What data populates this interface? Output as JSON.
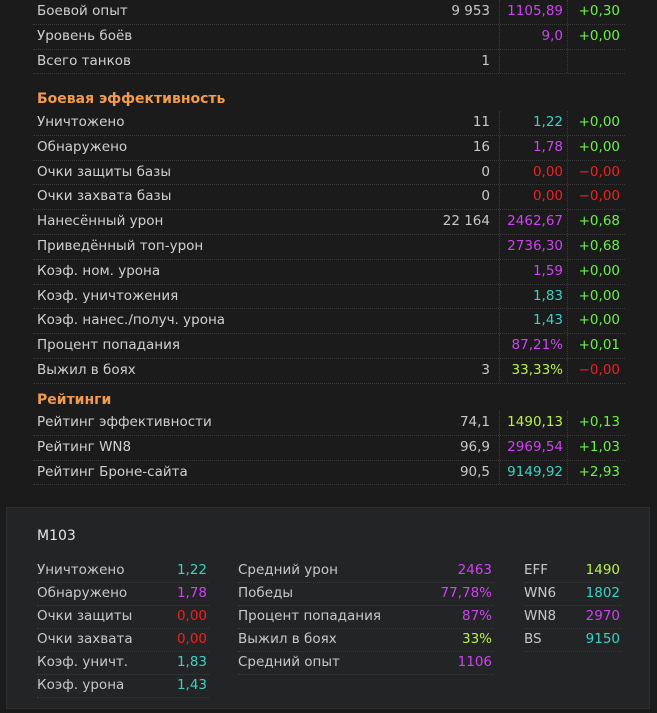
{
  "general": [
    {
      "label": "Боевой опыт",
      "count": "9 953",
      "avg": "1105,89",
      "avg_color": "purple",
      "delta": "+0,30",
      "delta_color": "green"
    },
    {
      "label": "Уровень боёв",
      "count": "",
      "avg": "9,0",
      "avg_color": "purple",
      "delta": "+0,00",
      "delta_color": "green"
    },
    {
      "label": "Всего танков",
      "count": "1",
      "avg": "",
      "avg_color": "white",
      "delta": "",
      "delta_color": "green"
    }
  ],
  "battle_efficiency": {
    "title": "Боевая эффективность",
    "rows": [
      {
        "label": "Уничтожено",
        "count": "11",
        "avg": "1,22",
        "avg_color": "teal",
        "delta": "+0,00",
        "delta_color": "green"
      },
      {
        "label": "Обнаружено",
        "count": "16",
        "avg": "1,78",
        "avg_color": "purple",
        "delta": "+0,00",
        "delta_color": "green"
      },
      {
        "label": "Очки защиты базы",
        "count": "0",
        "avg": "0,00",
        "avg_color": "red",
        "delta": "−0,00",
        "delta_color": "red"
      },
      {
        "label": "Очки захвата базы",
        "count": "0",
        "avg": "0,00",
        "avg_color": "red",
        "delta": "−0,00",
        "delta_color": "red"
      },
      {
        "label": "Нанесённый урон",
        "count": "22 164",
        "avg": "2462,67",
        "avg_color": "purple",
        "delta": "+0,68",
        "delta_color": "green"
      },
      {
        "label": "Приведённый топ-урон",
        "count": "",
        "avg": "2736,30",
        "avg_color": "purple",
        "delta": "+0,68",
        "delta_color": "green"
      },
      {
        "label": "Коэф. ном. урона",
        "count": "",
        "avg": "1,59",
        "avg_color": "purple",
        "delta": "+0,00",
        "delta_color": "green"
      },
      {
        "label": "Коэф. уничтожения",
        "count": "",
        "avg": "1,83",
        "avg_color": "teal",
        "delta": "+0,00",
        "delta_color": "green"
      },
      {
        "label": "Коэф. нанес./получ. урона",
        "count": "",
        "avg": "1,43",
        "avg_color": "teal",
        "delta": "+0,00",
        "delta_color": "green"
      },
      {
        "label": "Процент попадания",
        "count": "",
        "avg": "87,21%",
        "avg_color": "purple",
        "delta": "+0,01",
        "delta_color": "green"
      },
      {
        "label": "Выжил в боях",
        "count": "3",
        "avg": "33,33%",
        "avg_color": "lime",
        "delta": "−0,00",
        "delta_color": "red"
      }
    ]
  },
  "ratings": {
    "title": "Рейтинги",
    "rows": [
      {
        "label": "Рейтинг эффективности",
        "count": "74,1",
        "avg": "1490,13",
        "avg_color": "lime",
        "delta": "+0,13",
        "delta_color": "green"
      },
      {
        "label": "Рейтинг WN8",
        "count": "96,9",
        "avg": "2969,54",
        "avg_color": "purple",
        "delta": "+1,03",
        "delta_color": "green"
      },
      {
        "label": "Рейтинг Броне-сайта",
        "count": "90,5",
        "avg": "9149,92",
        "avg_color": "teal",
        "delta": "+2,93",
        "delta_color": "green"
      }
    ]
  },
  "panel": {
    "tank_name": "M103",
    "col1": [
      {
        "label": "Уничтожено",
        "value": "1,22",
        "color": "teal"
      },
      {
        "label": "Обнаружено",
        "value": "1,78",
        "color": "purple"
      },
      {
        "label": "Очки защиты",
        "value": "0,00",
        "color": "red"
      },
      {
        "label": "Очки захвата",
        "value": "0,00",
        "color": "red"
      },
      {
        "label": "Коэф. уничт.",
        "value": "1,83",
        "color": "teal"
      },
      {
        "label": "Коэф. урона",
        "value": "1,43",
        "color": "teal"
      }
    ],
    "col2": [
      {
        "label": "Средний урон",
        "value": "2463",
        "color": "purple"
      },
      {
        "label": "Победы",
        "value": "77,78%",
        "color": "purple"
      },
      {
        "label": "Процент попадания",
        "value": "87%",
        "color": "purple"
      },
      {
        "label": "Выжил в боях",
        "value": "33%",
        "color": "lime"
      },
      {
        "label": "Средний опыт",
        "value": "1106",
        "color": "purple"
      }
    ],
    "col3": [
      {
        "label": "EFF",
        "value": "1490",
        "color": "lime"
      },
      {
        "label": "WN6",
        "value": "1802",
        "color": "teal"
      },
      {
        "label": "WN8",
        "value": "2970",
        "color": "purple"
      },
      {
        "label": "BS",
        "value": "9150",
        "color": "teal"
      }
    ]
  },
  "colors": {
    "purple": "#d042f3",
    "teal": "#3ad3c4",
    "green": "#6cf04a",
    "red": "#f02020",
    "lime": "#b9f04a",
    "section_title": "#f19b4e"
  }
}
